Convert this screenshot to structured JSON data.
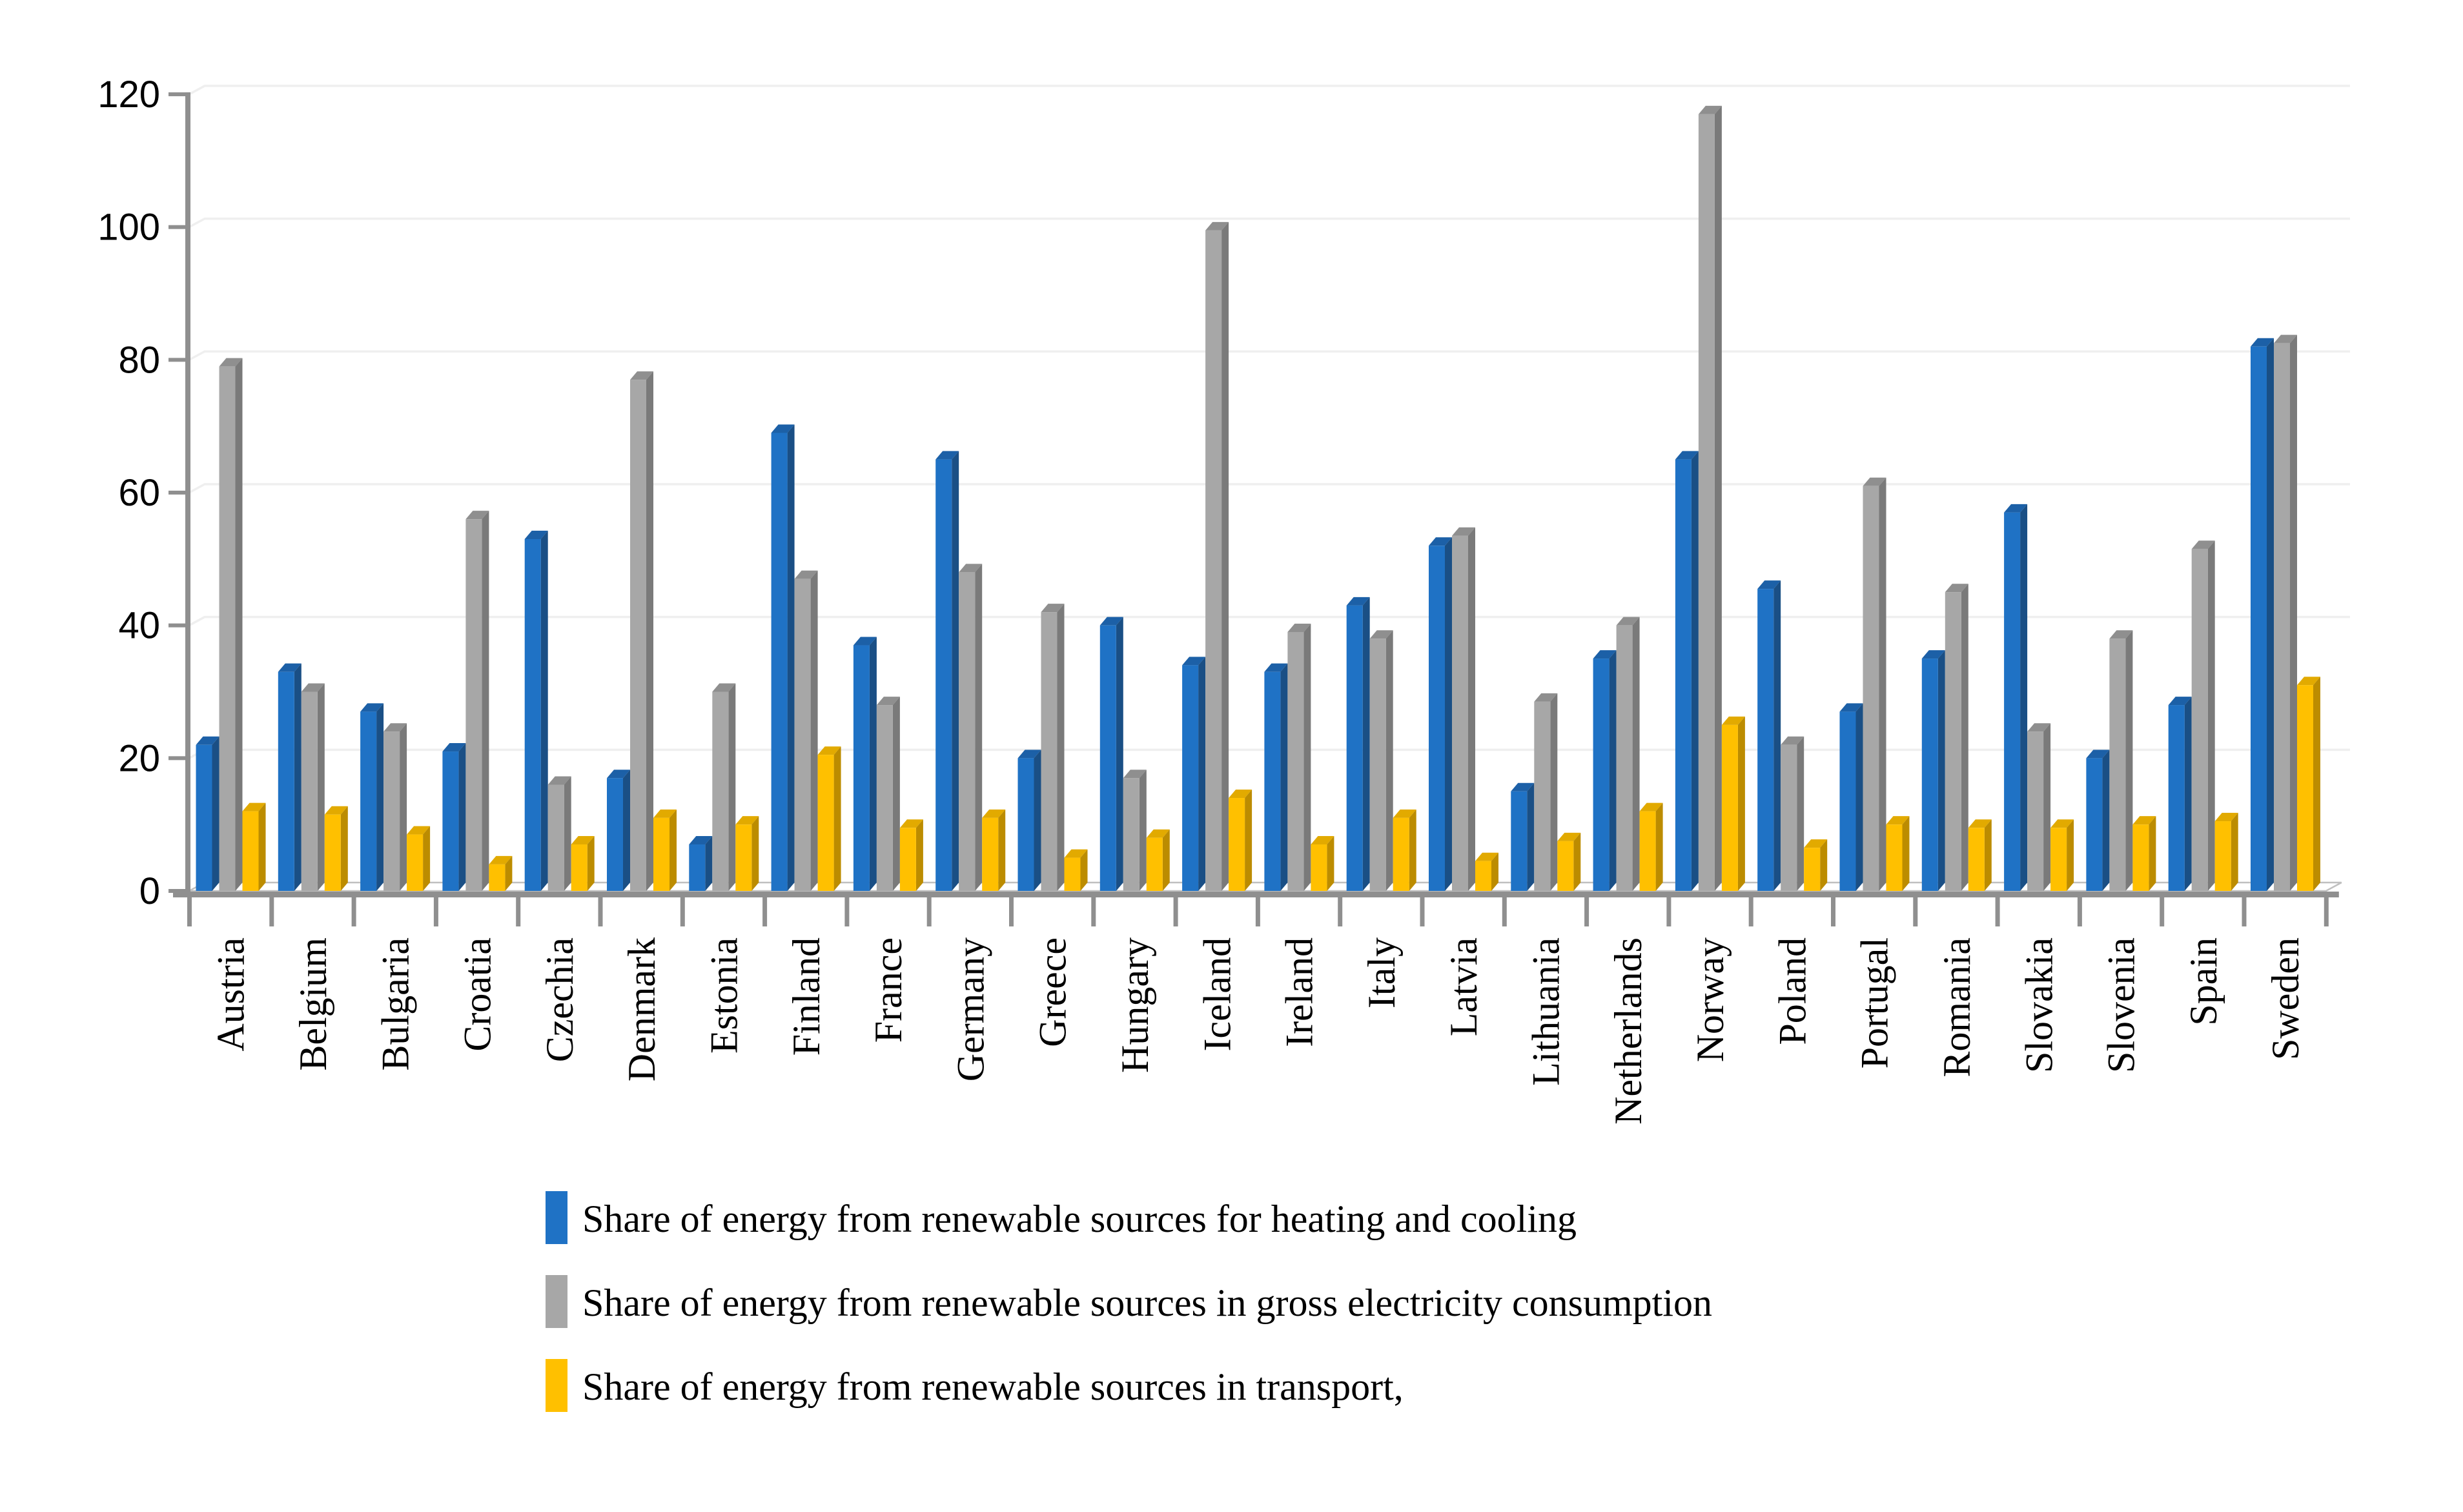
{
  "chart_data": {
    "type": "bar",
    "style": "3d-clustered-column",
    "title": "",
    "xlabel": "",
    "ylabel": "",
    "categories": [
      "Austria",
      "Belgium",
      "Bulgaria",
      "Croatia",
      "Czechia",
      "Denmark",
      "Estonia",
      "Finland",
      "France",
      "Germany",
      "Greece",
      "Hungary",
      "Iceland",
      "Ireland",
      "Italy",
      "Latvia",
      "Lithuania",
      "Netherlands",
      "Norway",
      "Poland",
      "Portugal",
      "Romania",
      "Slovakia",
      "Slovenia",
      "Spain",
      "Sweden"
    ],
    "series": [
      {
        "name": "Share of energy from renewable sources for heating and cooling",
        "color": "#1F72C5",
        "side_color": "#1A4F85",
        "top_color": "#1C60A7",
        "values": [
          22,
          33,
          27,
          21,
          53,
          17,
          7,
          69,
          37,
          65,
          20,
          40,
          34,
          33,
          43,
          52,
          15,
          35,
          65,
          45.5,
          27,
          35,
          57,
          20,
          28,
          82
        ]
      },
      {
        "name": "Share of energy from renewable sources in gross electricity consumption",
        "color": "#A7A7A7",
        "side_color": "#7A7A7A",
        "top_color": "#8F8F8F",
        "values": [
          79,
          30,
          24,
          56,
          16,
          77,
          30,
          47,
          28,
          48,
          42,
          17,
          99.5,
          39,
          38,
          53.5,
          28.5,
          40,
          117,
          22,
          61,
          45,
          24,
          38,
          51.5,
          82.5
        ]
      },
      {
        "name": "Share of energy from renewable sources in transport,",
        "color": "#FFC000",
        "side_color": "#BC8C00",
        "top_color": "#E2AA00",
        "values": [
          12,
          11.5,
          8.5,
          4,
          7,
          11,
          10,
          20.5,
          9.5,
          11,
          5,
          8,
          14,
          7,
          11,
          4.5,
          7.5,
          12,
          25,
          6.5,
          10,
          9.5,
          9.5,
          10,
          10.5,
          31
        ]
      }
    ],
    "y_axis": {
      "min": 0,
      "max": 120,
      "step": 20,
      "tick_labels": [
        "0",
        "20",
        "40",
        "60",
        "80",
        "100",
        "120"
      ]
    },
    "x_axis": {
      "label_rotation": -90
    },
    "legend_position": "bottom-left",
    "grid": true,
    "colors": {
      "background": "#FFFFFF",
      "gridline": "#EFEFEF",
      "axis": "#8F8F8F",
      "floor_edge": "#C0C0C0",
      "frame_border": "#7F7F7F",
      "text": "#000000"
    }
  }
}
